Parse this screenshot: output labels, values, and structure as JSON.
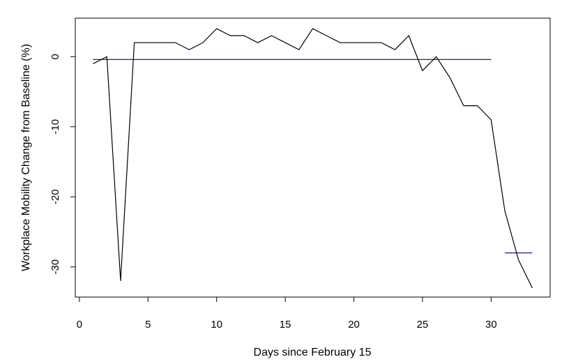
{
  "chart_data": {
    "type": "line",
    "xlabel": "Days since February 15",
    "ylabel": "Workplace Mobility Change from Baseline (%)",
    "xlim": [
      -0.3,
      34.3
    ],
    "ylim": [
      -34.3,
      5.5
    ],
    "x_ticks": [
      0,
      5,
      10,
      15,
      20,
      25,
      30
    ],
    "y_ticks": [
      0,
      -10,
      -20,
      -30
    ],
    "grid": false,
    "series": [
      {
        "color": "#000000",
        "x": [
          1,
          2,
          3,
          4,
          5,
          6,
          7,
          8,
          9,
          10,
          11,
          12,
          13,
          14,
          15,
          16,
          17,
          18,
          19,
          20,
          21,
          22,
          23,
          24,
          25,
          26,
          27,
          28,
          29,
          30,
          31,
          32,
          33
        ],
        "y": [
          -1,
          0,
          -32,
          2,
          2,
          2,
          2,
          1,
          2,
          4,
          3,
          3,
          2,
          3,
          2,
          1,
          4,
          3,
          2,
          2,
          2,
          2,
          1,
          3,
          -2,
          0,
          -3,
          -7,
          -7,
          -9,
          -22,
          -29,
          -33
        ]
      },
      {
        "color": "#00008b",
        "x": [
          1,
          30
        ],
        "y": [
          -0.4,
          -0.4
        ]
      },
      {
        "color": "#00008b",
        "x": [
          31,
          33
        ],
        "y": [
          -28,
          -28
        ]
      }
    ]
  }
}
